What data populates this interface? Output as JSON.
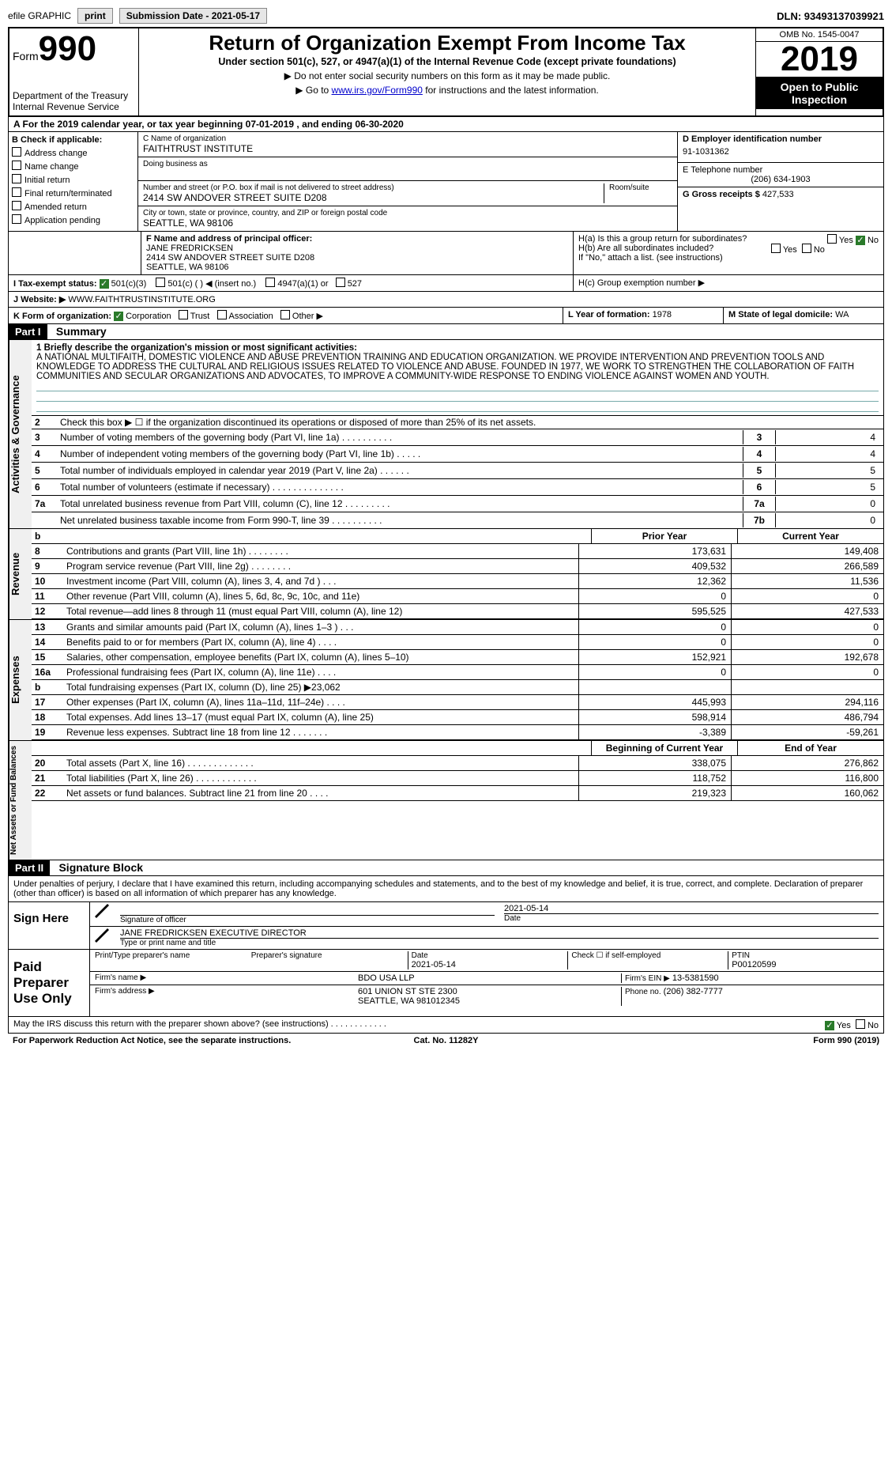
{
  "topbar": {
    "efile_label": "efile GRAPHIC",
    "print_btn": "print",
    "submission_label": "Submission Date - 2021-05-17",
    "dln_label": "DLN: 93493137039921"
  },
  "header": {
    "form_word": "Form",
    "form_number": "990",
    "dept1": "Department of the Treasury",
    "dept2": "Internal Revenue Service",
    "title": "Return of Organization Exempt From Income Tax",
    "subtitle": "Under section 501(c), 527, or 4947(a)(1) of the Internal Revenue Code (except private foundations)",
    "note1": "▶ Do not enter social security numbers on this form as it may be made public.",
    "note2_pre": "▶ Go to ",
    "note2_link": "www.irs.gov/Form990",
    "note2_post": " for instructions and the latest information.",
    "omb": "OMB No. 1545-0047",
    "tax_year": "2019",
    "open_public": "Open to Public Inspection"
  },
  "period": {
    "text_pre": "A For the 2019 calendar year, or tax year beginning ",
    "begin": "07-01-2019",
    "mid": " , and ending ",
    "end": "06-30-2020"
  },
  "boxB": {
    "label": "B Check if applicable:",
    "opts": [
      "Address change",
      "Name change",
      "Initial return",
      "Final return/terminated",
      "Amended return",
      "Application pending"
    ]
  },
  "boxC": {
    "name_label": "C Name of organization",
    "name": "FAITHTRUST INSTITUTE",
    "dba_label": "Doing business as",
    "dba": "",
    "addr_label": "Number and street (or P.O. box if mail is not delivered to street address)",
    "room_label": "Room/suite",
    "addr": "2414 SW ANDOVER STREET SUITE D208",
    "city_label": "City or town, state or province, country, and ZIP or foreign postal code",
    "city": "SEATTLE, WA  98106"
  },
  "boxD": {
    "label": "D Employer identification number",
    "ein": "91-1031362"
  },
  "boxE": {
    "label": "E Telephone number",
    "phone": "(206) 634-1903"
  },
  "boxG": {
    "label": "G Gross receipts $",
    "value": "427,533"
  },
  "boxF": {
    "label": "F Name and address of principal officer:",
    "name": "JANE FREDRICKSEN",
    "addr1": "2414 SW ANDOVER STREET SUITE D208",
    "addr2": "SEATTLE, WA  98106"
  },
  "boxH": {
    "a_label": "H(a)  Is this a group return for subordinates?",
    "a_yes": "Yes",
    "a_no": "No",
    "b_label": "H(b)  Are all subordinates included?",
    "b_yes": "Yes",
    "b_no": "No",
    "b_note": "If \"No,\" attach a list. (see instructions)",
    "c_label": "H(c)  Group exemption number ▶"
  },
  "boxI": {
    "label": "I  Tax-exempt status:",
    "o1": "501(c)(3)",
    "o2": "501(c) (   ) ◀ (insert no.)",
    "o3": "4947(a)(1) or",
    "o4": "527"
  },
  "boxJ": {
    "label": "J  Website: ▶",
    "value": "WWW.FAITHTRUSTINSTITUTE.ORG"
  },
  "boxK": {
    "label": "K Form of organization:",
    "o1": "Corporation",
    "o2": "Trust",
    "o3": "Association",
    "o4": "Other ▶"
  },
  "boxL": {
    "label": "L Year of formation:",
    "value": "1978"
  },
  "boxM": {
    "label": "M State of legal domicile:",
    "value": "WA"
  },
  "partI": {
    "hdr": "Part I",
    "title": "Summary"
  },
  "mission": {
    "label": "1  Briefly describe the organization's mission or most significant activities:",
    "text": "A NATIONAL MULTIFAITH, DOMESTIC VIOLENCE AND ABUSE PREVENTION TRAINING AND EDUCATION ORGANIZATION. WE PROVIDE INTERVENTION AND PREVENTION TOOLS AND KNOWLEDGE TO ADDRESS THE CULTURAL AND RELIGIOUS ISSUES RELATED TO VIOLENCE AND ABUSE. FOUNDED IN 1977, WE WORK TO STRENGTHEN THE COLLABORATION OF FAITH COMMUNITIES AND SECULAR ORGANIZATIONS AND ADVOCATES, TO IMPROVE A COMMUNITY-WIDE RESPONSE TO ENDING VIOLENCE AGAINST WOMEN AND YOUTH."
  },
  "activities_label": "Activities & Governance",
  "gov_rows": [
    {
      "n": "2",
      "t": "Check this box ▶ ☐ if the organization discontinued its operations or disposed of more than 25% of its net assets.",
      "box": "",
      "v": ""
    },
    {
      "n": "3",
      "t": "Number of voting members of the governing body (Part VI, line 1a)  .  .  .  .  .  .  .  .  .  .",
      "box": "3",
      "v": "4"
    },
    {
      "n": "4",
      "t": "Number of independent voting members of the governing body (Part VI, line 1b)  .  .  .  .  .",
      "box": "4",
      "v": "4"
    },
    {
      "n": "5",
      "t": "Total number of individuals employed in calendar year 2019 (Part V, line 2a)  .  .  .  .  .  .",
      "box": "5",
      "v": "5"
    },
    {
      "n": "6",
      "t": "Total number of volunteers (estimate if necessary)  .  .  .  .  .  .  .  .  .  .  .  .  .  .",
      "box": "6",
      "v": "5"
    },
    {
      "n": "7a",
      "t": "Total unrelated business revenue from Part VIII, column (C), line 12  .  .  .  .  .  .  .  .  .",
      "box": "7a",
      "v": "0"
    },
    {
      "n": "",
      "t": "Net unrelated business taxable income from Form 990-T, line 39  .  .  .  .  .  .  .  .  .  .",
      "box": "7b",
      "v": "0"
    }
  ],
  "rev_hdr": {
    "b": "b",
    "prior": "Prior Year",
    "current": "Current Year"
  },
  "revenue_label": "Revenue",
  "revenue_rows": [
    {
      "n": "8",
      "t": "Contributions and grants (Part VIII, line 1h)  .  .  .  .  .  .  .  .",
      "c1": "173,631",
      "c2": "149,408"
    },
    {
      "n": "9",
      "t": "Program service revenue (Part VIII, line 2g)  .  .  .  .  .  .  .  .",
      "c1": "409,532",
      "c2": "266,589"
    },
    {
      "n": "10",
      "t": "Investment income (Part VIII, column (A), lines 3, 4, and 7d )  .  .  .",
      "c1": "12,362",
      "c2": "11,536"
    },
    {
      "n": "11",
      "t": "Other revenue (Part VIII, column (A), lines 5, 6d, 8c, 9c, 10c, and 11e)",
      "c1": "0",
      "c2": "0"
    },
    {
      "n": "12",
      "t": "Total revenue—add lines 8 through 11 (must equal Part VIII, column (A), line 12)",
      "c1": "595,525",
      "c2": "427,533"
    }
  ],
  "expenses_label": "Expenses",
  "expense_rows": [
    {
      "n": "13",
      "t": "Grants and similar amounts paid (Part IX, column (A), lines 1–3 )  .  .  .",
      "c1": "0",
      "c2": "0"
    },
    {
      "n": "14",
      "t": "Benefits paid to or for members (Part IX, column (A), line 4)  .  .  .  .",
      "c1": "0",
      "c2": "0"
    },
    {
      "n": "15",
      "t": "Salaries, other compensation, employee benefits (Part IX, column (A), lines 5–10)",
      "c1": "152,921",
      "c2": "192,678"
    },
    {
      "n": "16a",
      "t": "Professional fundraising fees (Part IX, column (A), line 11e)  .  .  .  .",
      "c1": "0",
      "c2": "0"
    },
    {
      "n": "b",
      "t": "Total fundraising expenses (Part IX, column (D), line 25) ▶23,062",
      "c1": "",
      "c2": ""
    },
    {
      "n": "17",
      "t": "Other expenses (Part IX, column (A), lines 11a–11d, 11f–24e)  .  .  .  .",
      "c1": "445,993",
      "c2": "294,116"
    },
    {
      "n": "18",
      "t": "Total expenses. Add lines 13–17 (must equal Part IX, column (A), line 25)",
      "c1": "598,914",
      "c2": "486,794"
    },
    {
      "n": "19",
      "t": "Revenue less expenses. Subtract line 18 from line 12  .  .  .  .  .  .  .",
      "c1": "-3,389",
      "c2": "-59,261"
    }
  ],
  "net_label": "Net Assets or Fund Balances",
  "net_hdr": {
    "c1": "Beginning of Current Year",
    "c2": "End of Year"
  },
  "net_rows": [
    {
      "n": "20",
      "t": "Total assets (Part X, line 16)  .  .  .  .  .  .  .  .  .  .  .  .  .",
      "c1": "338,075",
      "c2": "276,862"
    },
    {
      "n": "21",
      "t": "Total liabilities (Part X, line 26)  .  .  .  .  .  .  .  .  .  .  .  .",
      "c1": "118,752",
      "c2": "116,800"
    },
    {
      "n": "22",
      "t": "Net assets or fund balances. Subtract line 21 from line 20  .  .  .  .",
      "c1": "219,323",
      "c2": "160,062"
    }
  ],
  "partII": {
    "hdr": "Part II",
    "title": "Signature Block"
  },
  "sig": {
    "decl": "Under penalties of perjury, I declare that I have examined this return, including accompanying schedules and statements, and to the best of my knowledge and belief, it is true, correct, and complete. Declaration of preparer (other than officer) is based on all information of which preparer has any knowledge.",
    "sign_here": "Sign Here",
    "sig_officer_lbl": "Signature of officer",
    "sig_date": "2021-05-14",
    "date_lbl": "Date",
    "officer_name": "JANE FREDRICKSEN  EXECUTIVE DIRECTOR",
    "officer_name_lbl": "Type or print name and title",
    "paid_lbl": "Paid Preparer Use Only",
    "prep_name_lbl": "Print/Type preparer's name",
    "prep_name": "",
    "prep_sig_lbl": "Preparer's signature",
    "prep_date_lbl": "Date",
    "prep_date": "2021-05-14",
    "self_emp_lbl": "Check ☐ if self-employed",
    "ptin_lbl": "PTIN",
    "ptin": "P00120599",
    "firm_name_lbl": "Firm's name    ▶",
    "firm_name": "BDO USA LLP",
    "firm_ein_lbl": "Firm's EIN ▶",
    "firm_ein": "13-5381590",
    "firm_addr_lbl": "Firm's address ▶",
    "firm_addr1": "601 UNION ST STE 2300",
    "firm_addr2": "SEATTLE, WA  981012345",
    "firm_phone_lbl": "Phone no.",
    "firm_phone": "(206) 382-7777",
    "discuss": "May the IRS discuss this return with the preparer shown above? (see instructions)  .  .  .  .  .  .  .  .  .  .  .  .",
    "yes": "Yes",
    "no": "No"
  },
  "footer": {
    "left": "For Paperwork Reduction Act Notice, see the separate instructions.",
    "center": "Cat. No. 11282Y",
    "right": "Form 990 (2019)"
  },
  "colors": {
    "black": "#000000",
    "white": "#ffffff",
    "link": "#0000cc",
    "green": "#2a7a2a",
    "grey": "#e6e6e6",
    "lineblue": "#7aa"
  }
}
